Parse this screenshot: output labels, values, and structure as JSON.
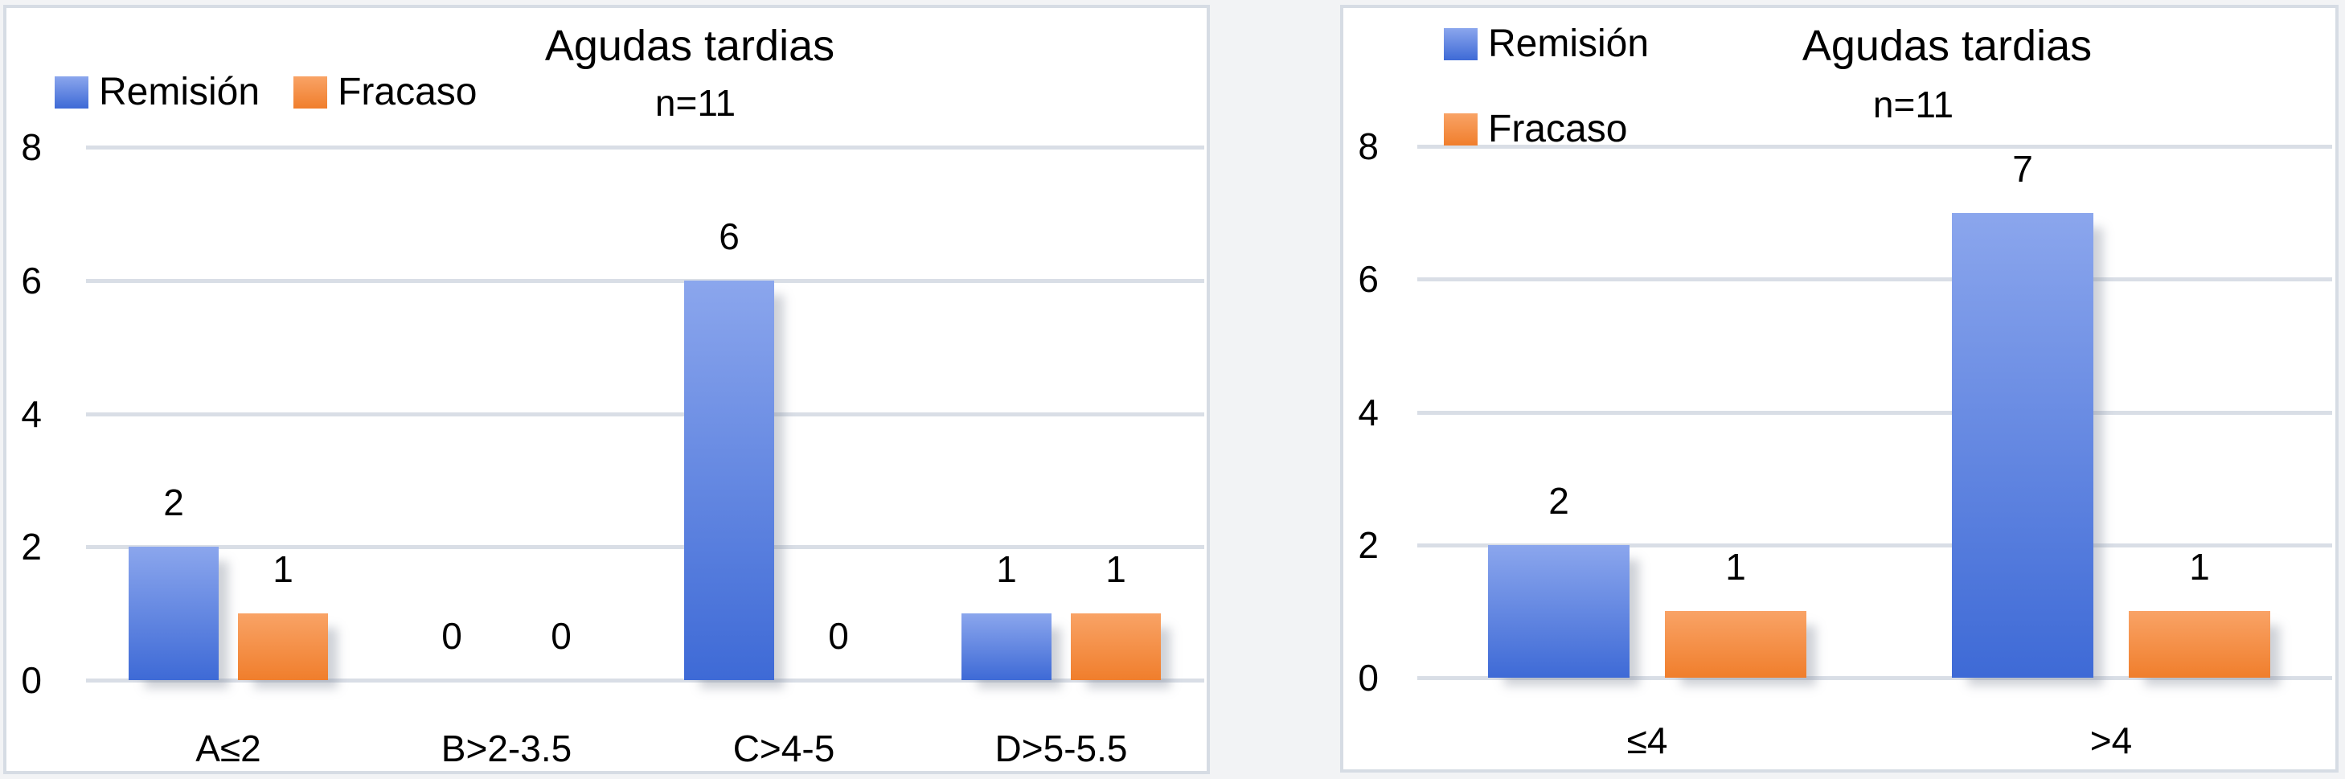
{
  "colors": {
    "background": "#F2F3F5",
    "panel_background": "#FFFFFF",
    "panel_border": "#D6DCE4",
    "gridline": "#D9DEE6",
    "remision_top": "#8BA6ED",
    "remision_bottom": "#3E6AD6",
    "fracaso_top": "#F9A366",
    "fracaso_bottom": "#F07E2C",
    "text": "#000000"
  },
  "chart_data": [
    {
      "type": "bar",
      "title": "Agudas tardias",
      "subtitle": "n=11",
      "xlabel": "",
      "ylabel": "",
      "ylim": [
        0,
        8
      ],
      "y_ticks": [
        8,
        6,
        4,
        2,
        0
      ],
      "grid": true,
      "legend_position": "top-left-horizontal",
      "categories": [
        "A≤2",
        "B>2-3.5",
        "C>4-5",
        "D>5-5.5"
      ],
      "series": [
        {
          "name": "Remisión",
          "values": [
            2,
            0,
            6,
            1
          ],
          "color_top": "#8BA6ED",
          "color_bottom": "#3E6AD6"
        },
        {
          "name": "Fracaso",
          "values": [
            1,
            0,
            0,
            1
          ],
          "color_top": "#F9A366",
          "color_bottom": "#F07E2C"
        }
      ]
    },
    {
      "type": "bar",
      "title": "Agudas tardias",
      "subtitle": "n=11",
      "xlabel": "",
      "ylabel": "",
      "ylim": [
        0,
        8
      ],
      "y_ticks": [
        8,
        6,
        4,
        2,
        0
      ],
      "grid": true,
      "legend_position": "top-left-vertical",
      "categories": [
        "≤4",
        ">4"
      ],
      "series": [
        {
          "name": "Remisión",
          "values": [
            2,
            7
          ],
          "color_top": "#8BA6ED",
          "color_bottom": "#3E6AD6"
        },
        {
          "name": "Fracaso",
          "values": [
            1,
            1
          ],
          "color_top": "#F9A366",
          "color_bottom": "#F07E2C"
        }
      ]
    }
  ]
}
